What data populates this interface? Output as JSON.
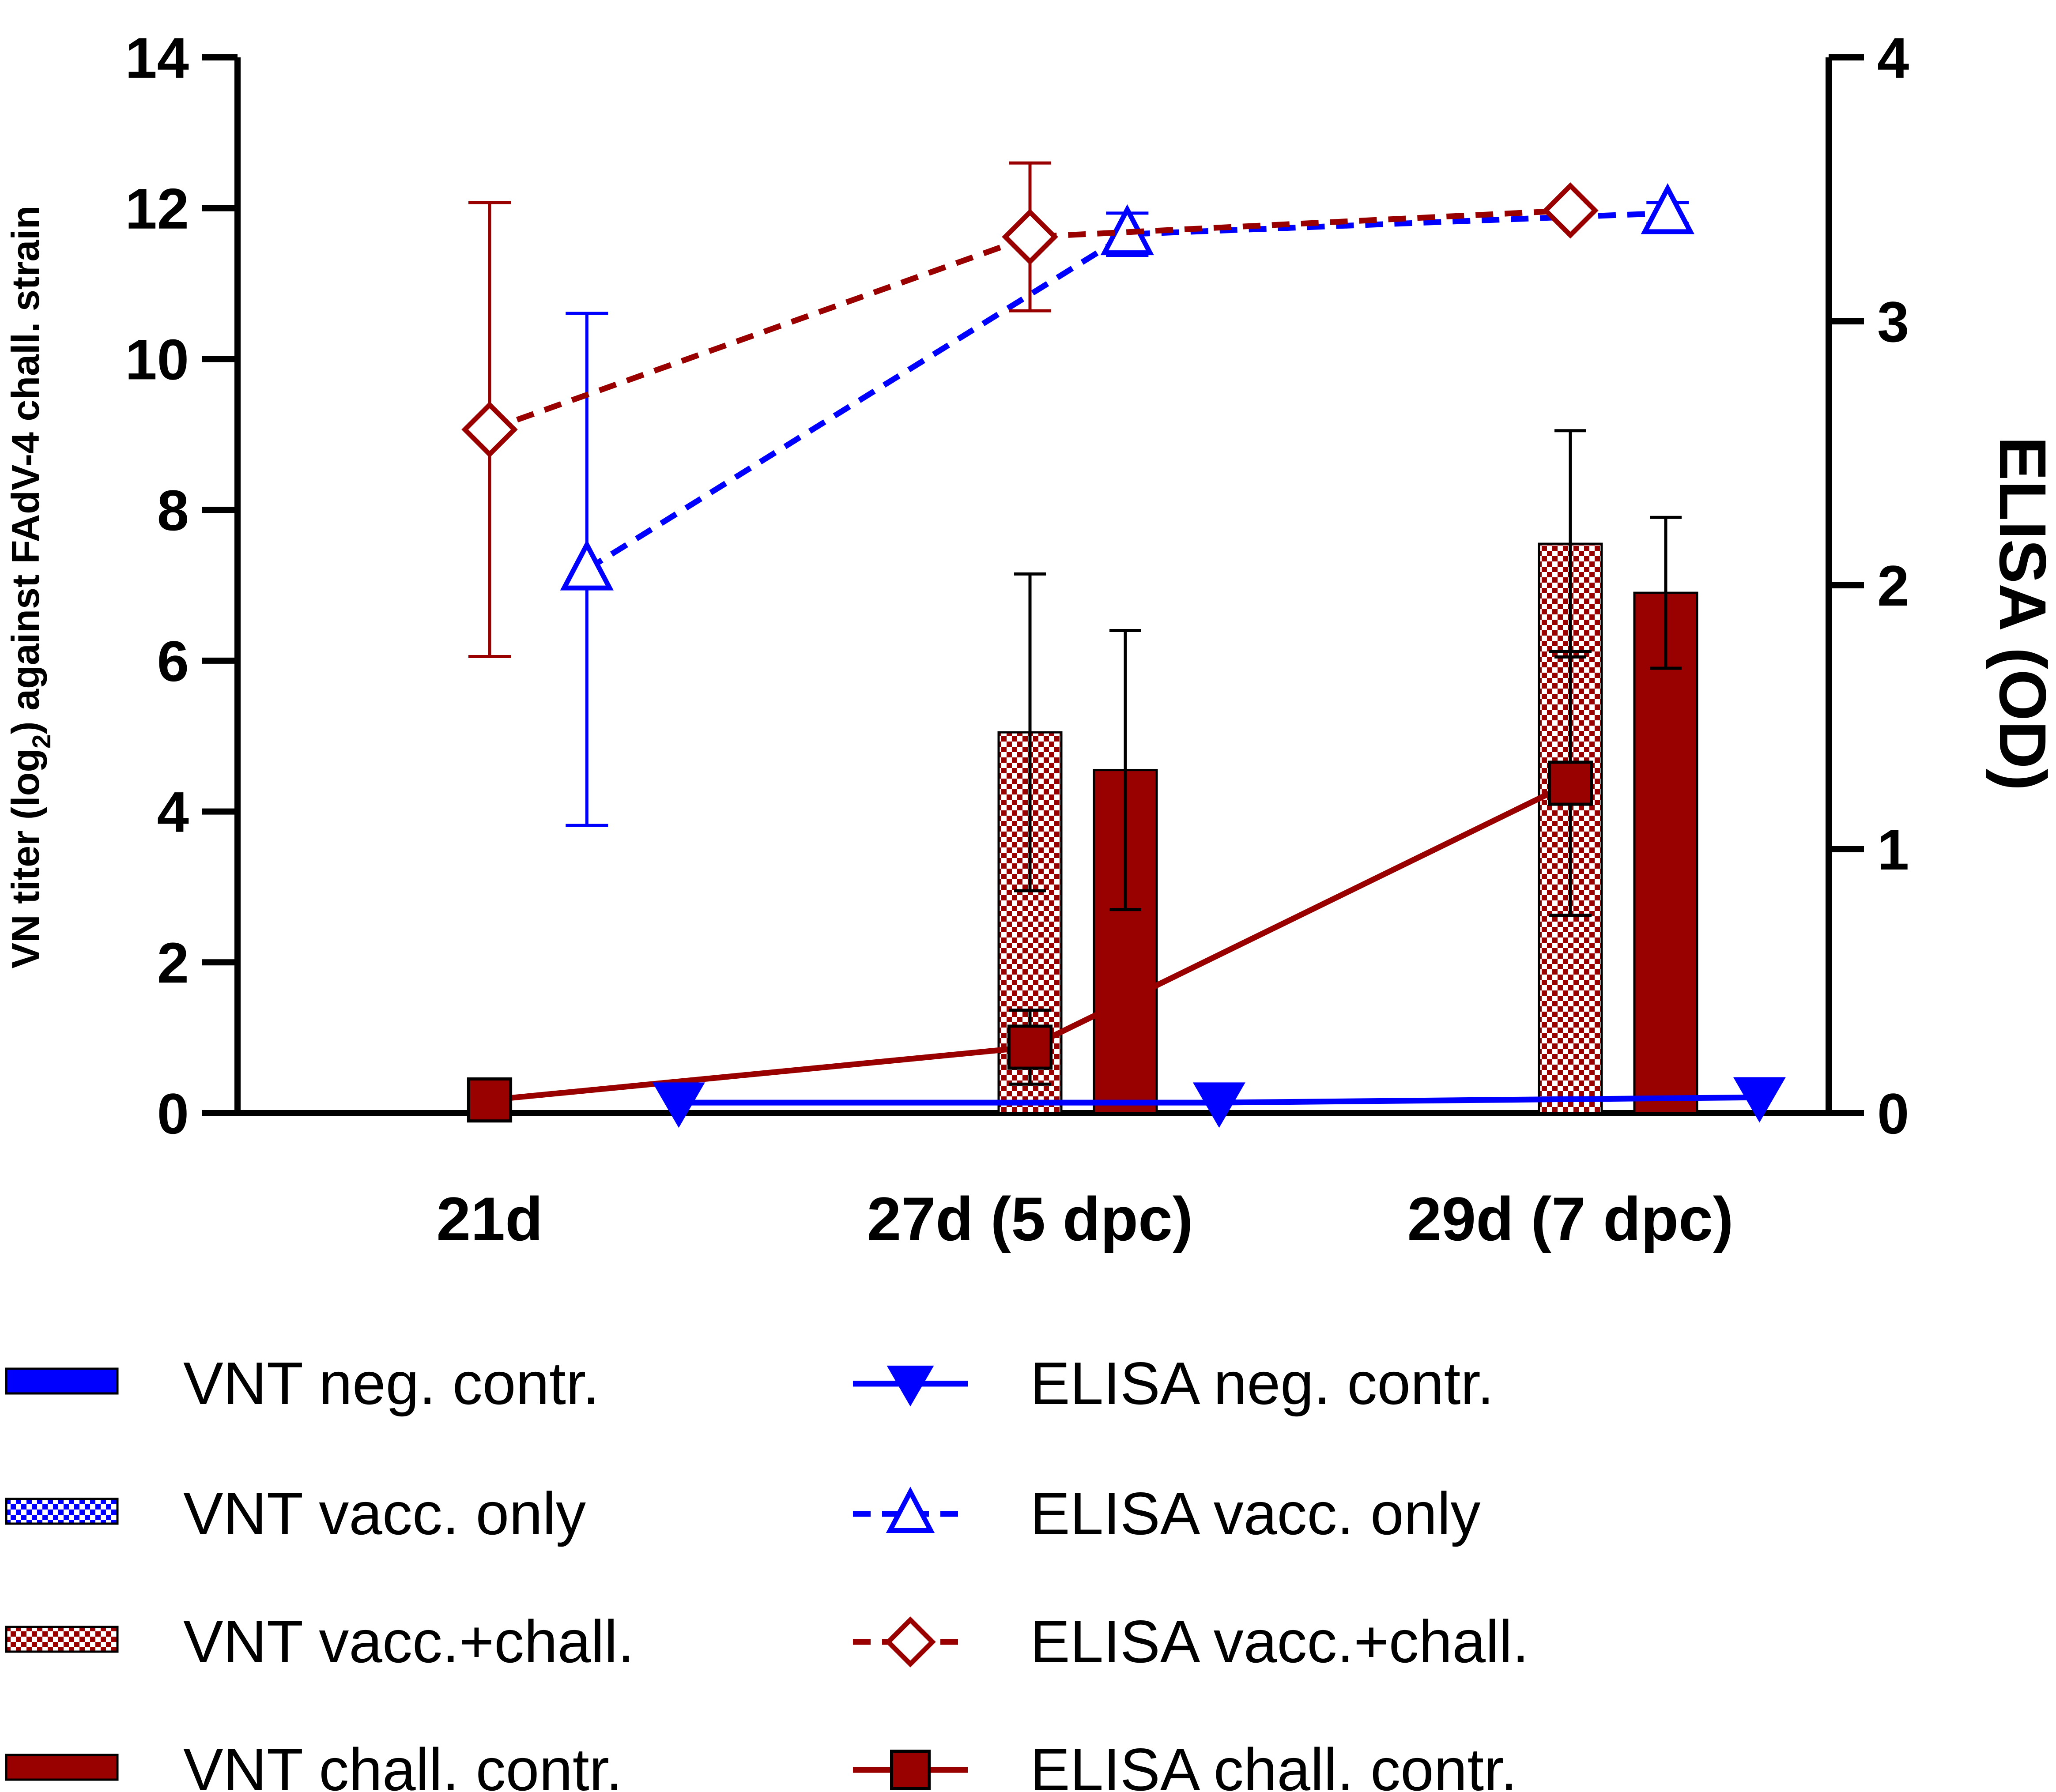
{
  "chart_data": {
    "type": "bar+line (dual axis)",
    "categories": [
      "21d",
      "27d (5 dpc)",
      "29d (7 dpc)"
    ],
    "left_axis": {
      "label_parts": [
        "VN titer (log",
        "2",
        ") against FAdV-4 chall. strain"
      ],
      "range": [
        0,
        14
      ],
      "ticks": [
        "0",
        "2",
        "4",
        "6",
        "8",
        "10",
        "12",
        "14"
      ]
    },
    "right_axis": {
      "label": "ELISA (OD)",
      "range": [
        0,
        4
      ],
      "ticks": [
        "0",
        "1",
        "2",
        "3",
        "4"
      ]
    },
    "bar_series": [
      {
        "name": "VNT neg. contr.",
        "color": "#0000ff",
        "pattern": "solid",
        "values": [
          0,
          0,
          0
        ],
        "errors": [
          0,
          0,
          0
        ]
      },
      {
        "name": "VNT vacc. only",
        "color": "#0000ff",
        "pattern": "checker",
        "values": [
          0,
          0,
          0
        ],
        "errors": [
          0,
          0,
          0
        ]
      },
      {
        "name": "VNT vacc.+chall.",
        "color": "#990000",
        "pattern": "checker",
        "values": [
          null,
          5.05,
          7.55
        ],
        "errors": [
          0,
          2.1,
          1.5
        ]
      },
      {
        "name": "VNT chall. contr.",
        "color": "#990000",
        "pattern": "solid",
        "values": [
          null,
          4.55,
          6.9
        ],
        "errors": [
          0,
          1.85,
          1.0
        ]
      }
    ],
    "line_series": [
      {
        "name": "ELISA neg. contr.",
        "color": "#0000ff",
        "marker": "triangle-down",
        "dashed": false,
        "filled": true,
        "x_pos": [
          0.35,
          1.35,
          2.35
        ],
        "values": [
          0.04,
          0.04,
          0.06
        ],
        "errors": [
          0,
          0,
          0
        ]
      },
      {
        "name": "ELISA vacc. only",
        "color": "#0000ff",
        "marker": "triangle-up",
        "dashed": true,
        "filled": false,
        "x_pos": [
          0.18,
          1.18,
          2.18
        ],
        "values": [
          2.06,
          3.33,
          3.41
        ],
        "errors": [
          0.97,
          0.08,
          0.04
        ]
      },
      {
        "name": "ELISA vacc.+chall.",
        "color": "#990000",
        "marker": "diamond",
        "dashed": true,
        "filled": false,
        "x_pos": [
          0,
          1,
          2
        ],
        "values": [
          2.59,
          3.32,
          3.42
        ],
        "errors": [
          0.86,
          0.28,
          0
        ]
      },
      {
        "name": "ELISA chall. contr.",
        "color": "#990000",
        "marker": "square",
        "dashed": false,
        "filled": true,
        "x_pos": [
          0,
          1,
          2
        ],
        "values": [
          0.05,
          0.25,
          1.25
        ],
        "errors": [
          0,
          0.14,
          0.5
        ]
      }
    ],
    "legend": [
      {
        "label": "VNT neg. contr.",
        "kind": "bar",
        "color": "#0000ff",
        "pattern": "solid"
      },
      {
        "label": "VNT vacc. only",
        "kind": "bar",
        "color": "#0000ff",
        "pattern": "checker"
      },
      {
        "label": "VNT vacc.+chall.",
        "kind": "bar",
        "color": "#990000",
        "pattern": "checker"
      },
      {
        "label": "VNT chall. contr.",
        "kind": "bar",
        "color": "#990000",
        "pattern": "solid"
      },
      {
        "label": "ELISA neg. contr.",
        "kind": "line",
        "color": "#0000ff",
        "marker": "triangle-down",
        "dashed": false,
        "filled": true
      },
      {
        "label": "ELISA vacc. only",
        "kind": "line",
        "color": "#0000ff",
        "marker": "triangle-up",
        "dashed": true,
        "filled": false
      },
      {
        "label": "ELISA vacc.+chall.",
        "kind": "line",
        "color": "#990000",
        "marker": "diamond",
        "dashed": true,
        "filled": false
      },
      {
        "label": "ELISA chall. contr.",
        "kind": "line",
        "color": "#990000",
        "marker": "square",
        "dashed": false,
        "filled": true
      }
    ],
    "legend_placement": "bottom"
  }
}
